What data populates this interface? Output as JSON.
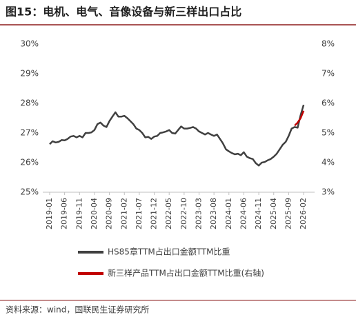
{
  "chart_data": {
    "type": "line",
    "title": "图15：电机、电气、音像设备与新三样出口占比",
    "source": "资料来源：wind，国联民生证券研究所",
    "categories": [
      "2019-01",
      null,
      null,
      null,
      null,
      "2019-06",
      null,
      null,
      null,
      null,
      "2019-11",
      null,
      null,
      null,
      null,
      "2020-04",
      null,
      null,
      null,
      null,
      "2020-09",
      null,
      null,
      null,
      null,
      "2021-02",
      null,
      null,
      null,
      null,
      "2021-07",
      null,
      null,
      null,
      null,
      "2021-12",
      null,
      null,
      null,
      null,
      "2022-05",
      null,
      null,
      null,
      null,
      "2022-10",
      null,
      null,
      null,
      null,
      "2023-03",
      null,
      null,
      null,
      null,
      "2023-08",
      null,
      null,
      null,
      null,
      "2024-01",
      null,
      null,
      null,
      null,
      "2024-06",
      null,
      null,
      null,
      null,
      "2024-11",
      null,
      null,
      null,
      null,
      "2025-04",
      null,
      null,
      null,
      null,
      "2025-09",
      null,
      null,
      null,
      null,
      "2026-02"
    ],
    "series": [
      {
        "name": "HS85章TTM占出口金额TTM比重",
        "color": "#404040",
        "values": [
          26.62,
          26.72,
          26.68,
          26.7,
          26.76,
          26.75,
          26.8,
          26.88,
          26.9,
          26.85,
          26.9,
          26.85,
          27.0,
          27.0,
          27.02,
          27.1,
          27.3,
          27.35,
          27.25,
          27.2,
          27.4,
          27.55,
          27.7,
          27.55,
          27.55,
          27.58,
          27.5,
          27.4,
          27.3,
          27.15,
          27.1,
          27.0,
          26.85,
          26.87,
          26.8,
          26.88,
          26.9,
          27.0,
          27.02,
          27.05,
          27.1,
          27.0,
          26.98,
          27.1,
          27.22,
          27.15,
          27.15,
          27.17,
          27.2,
          27.15,
          27.05,
          27.0,
          26.95,
          27.0,
          26.95,
          26.9,
          26.95,
          26.8,
          26.65,
          26.45,
          26.38,
          26.32,
          26.28,
          26.3,
          26.25,
          26.35,
          26.2,
          26.15,
          26.12,
          25.98,
          25.9,
          26.0,
          26.02,
          26.08,
          26.12,
          26.2,
          26.3,
          26.45,
          26.6,
          26.7,
          26.9,
          27.15,
          27.2,
          27.18,
          27.6,
          27.95
        ]
      },
      {
        "name": "新三样产品TTM占出口金额TTM比重(右轴)",
        "color": "#c00000",
        "axis": "y2",
        "values": [
          null,
          null,
          null,
          null,
          null,
          null,
          null,
          null,
          null,
          null,
          null,
          null,
          null,
          null,
          null,
          null,
          null,
          null,
          null,
          null,
          null,
          null,
          null,
          null,
          null,
          null,
          null,
          null,
          null,
          null,
          null,
          null,
          null,
          null,
          null,
          null,
          null,
          null,
          null,
          null,
          null,
          null,
          null,
          null,
          null,
          null,
          null,
          null,
          null,
          null,
          null,
          null,
          null,
          null,
          null,
          null,
          null,
          null,
          null,
          null,
          null,
          null,
          null,
          null,
          null,
          null,
          null,
          null,
          null,
          null,
          null,
          null,
          null,
          null,
          null,
          null,
          null,
          null,
          null,
          null,
          null,
          null,
          5.25,
          5.35,
          5.5,
          5.75
        ]
      }
    ],
    "ylim": [
      25,
      30
    ],
    "yticks": [
      {
        "value": 25,
        "label": "25%"
      },
      {
        "value": 26,
        "label": "26%"
      },
      {
        "value": 27,
        "label": "27%"
      },
      {
        "value": 28,
        "label": "28%"
      },
      {
        "value": 29,
        "label": "29%"
      },
      {
        "value": 30,
        "label": "30%"
      }
    ],
    "y2lim": [
      3,
      8
    ],
    "y2ticks": [
      {
        "value": 3,
        "label": "3%"
      },
      {
        "value": 4,
        "label": "4%"
      },
      {
        "value": 5,
        "label": "5%"
      },
      {
        "value": 6,
        "label": "6%"
      },
      {
        "value": 7,
        "label": "7%"
      },
      {
        "value": 8,
        "label": "8%"
      }
    ]
  }
}
